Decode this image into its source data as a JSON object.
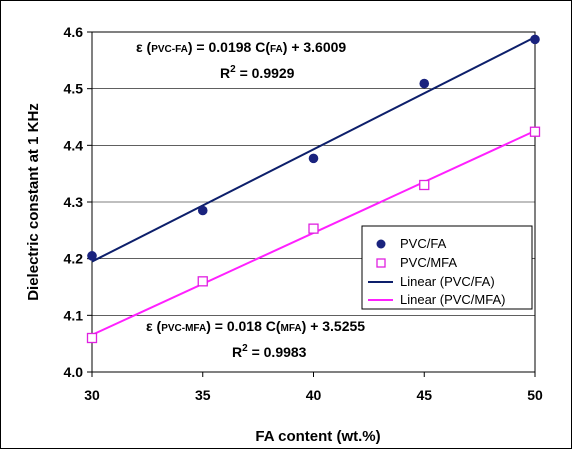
{
  "chart_data": {
    "type": "scatter",
    "xlabel": "FA content (wt.%)",
    "ylabel": "Dielectric constant at 1 KHz",
    "xlim": [
      30,
      50
    ],
    "ylim": [
      4.0,
      4.6
    ],
    "x_ticks": [
      "30",
      "35",
      "40",
      "45",
      "50"
    ],
    "y_ticks": [
      "4.0",
      "4.1",
      "4.2",
      "4.3",
      "4.4",
      "4.5",
      "4.6"
    ],
    "grid": "horizontal",
    "legend_position": "center-right",
    "series": [
      {
        "name": "PVC/FA",
        "marker": "filled-circle",
        "color": "#1a237e",
        "x": [
          30,
          35,
          40,
          45,
          50
        ],
        "y": [
          4.205,
          4.285,
          4.377,
          4.509,
          4.587
        ]
      },
      {
        "name": "PVC/MFA",
        "marker": "open-square",
        "color": "#e020e0",
        "x": [
          30,
          35,
          40,
          45,
          50
        ],
        "y": [
          4.06,
          4.16,
          4.253,
          4.33,
          4.424
        ]
      }
    ],
    "fits": [
      {
        "name": "Linear (PVC/FA)",
        "color": "#0d1f6b",
        "slope": 0.0198,
        "intercept": 3.6009,
        "equation": {
          "lhs": "ε (",
          "sub": "PVC-FA",
          "mid": ") = 0.0198 C(",
          "arg": "FA",
          "rhs": ") + 3.6009"
        },
        "r2": {
          "label": "R",
          "sup": "2",
          "value": " = 0.9929"
        }
      },
      {
        "name": "Linear (PVC/MFA)",
        "color": "#ff20ff",
        "slope": 0.018,
        "intercept": 3.5255,
        "equation": {
          "lhs": "ε (",
          "sub": "PVC-MFA",
          "mid": ") = 0.018 C(",
          "arg": "MFA",
          "rhs": ") + 3.5255"
        },
        "r2": {
          "label": "R",
          "sup": "2",
          "value": " = 0.9983"
        }
      }
    ]
  }
}
